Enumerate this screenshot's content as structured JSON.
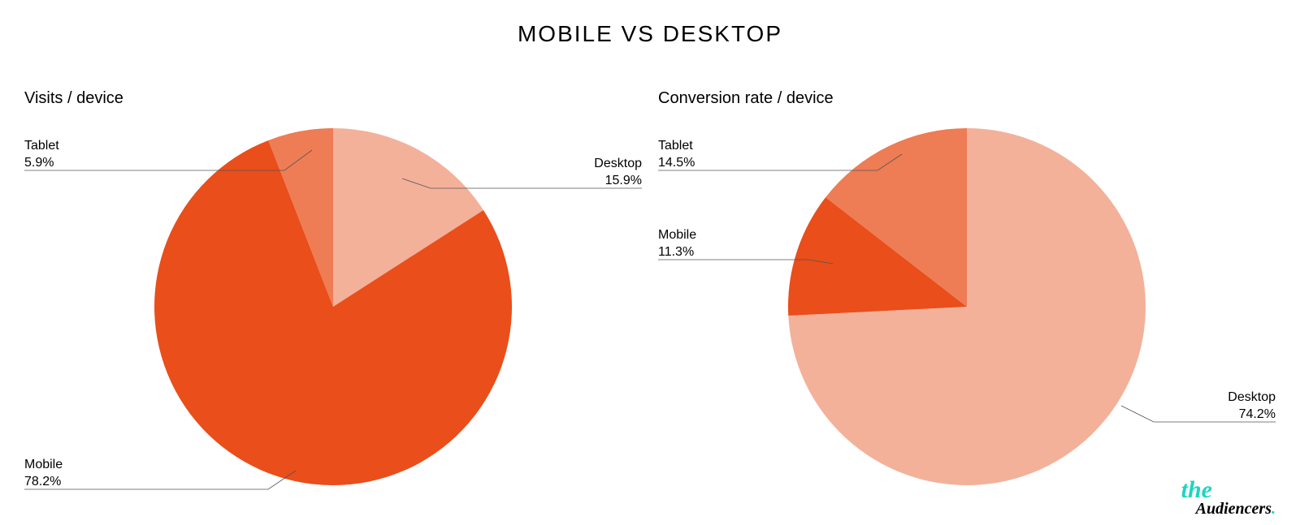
{
  "title": "MOBILE VS DESKTOP",
  "background_color": "#ffffff",
  "title_fontsize": 28,
  "title_color": "#000000",
  "panel_title_fontsize": 20,
  "label_fontsize": 16,
  "label_color": "#000000",
  "leader_color": "#555555",
  "colors": {
    "desktop": "#f3b19a",
    "mobile": "#e94e1b",
    "tablet": "#ee7c54"
  },
  "charts": [
    {
      "title": "Visits / device",
      "type": "pie",
      "radius": 220,
      "start_angle_deg": 0,
      "slices": [
        {
          "label": "Desktop",
          "value": 15.9,
          "color_key": "desktop"
        },
        {
          "label": "Mobile",
          "value": 78.2,
          "color_key": "mobile"
        },
        {
          "label": "Tablet",
          "value": 5.9,
          "color_key": "tablet"
        }
      ]
    },
    {
      "title": "Conversion rate / device",
      "type": "pie",
      "radius": 220,
      "start_angle_deg": 0,
      "slices": [
        {
          "label": "Desktop",
          "value": 74.2,
          "color_key": "desktop"
        },
        {
          "label": "Mobile",
          "value": 11.3,
          "color_key": "mobile"
        },
        {
          "label": "Tablet",
          "value": 14.5,
          "color_key": "tablet"
        }
      ]
    }
  ],
  "callouts": {
    "chart0": {
      "Desktop": {
        "name": "Desktop",
        "pct": "15.9%"
      },
      "Mobile": {
        "name": "Mobile",
        "pct": "78.2%"
      },
      "Tablet": {
        "name": "Tablet",
        "pct": "5.9%"
      }
    },
    "chart1": {
      "Desktop": {
        "name": "Desktop",
        "pct": "74.2%"
      },
      "Mobile": {
        "name": "Mobile",
        "pct": "11.3%"
      },
      "Tablet": {
        "name": "Tablet",
        "pct": "14.5%"
      }
    }
  },
  "logo": {
    "the": "the",
    "rest": "Audiencers",
    "dot": ".",
    "color_accent": "#1bd6c3",
    "color_text": "#000000"
  }
}
